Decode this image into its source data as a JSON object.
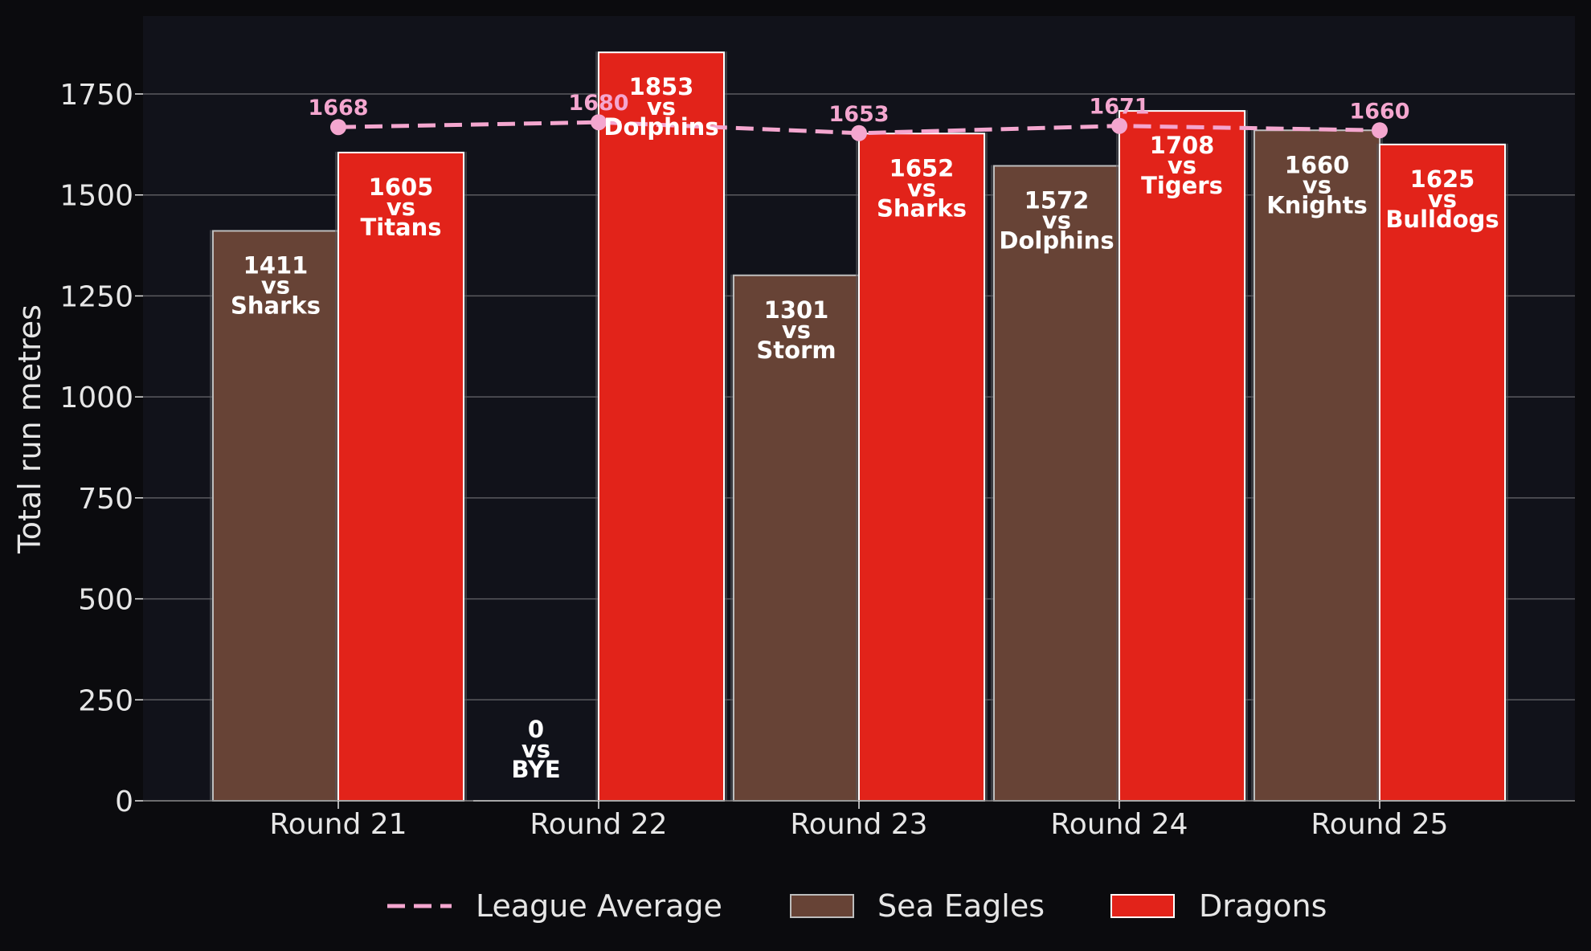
{
  "chart_data": {
    "type": "bar",
    "categories": [
      "Round 21",
      "Round 22",
      "Round 23",
      "Round 24",
      "Round 25"
    ],
    "ylabel": "Total run metres",
    "xlabel": "",
    "ylim": [
      0,
      1950
    ],
    "yticks": [
      0,
      250,
      500,
      750,
      1000,
      1250,
      1500,
      1750
    ],
    "grid": "horizontal",
    "legend_position": "bottom",
    "series": [
      {
        "name": "Sea Eagles",
        "type": "bar",
        "color": "#674336",
        "values": [
          1411,
          0,
          1301,
          1572,
          1660
        ],
        "opponents": [
          "Sharks",
          "BYE",
          "Storm",
          "Dolphins",
          "Knights"
        ]
      },
      {
        "name": "Dragons",
        "type": "bar",
        "color": "#e2231a",
        "values": [
          1605,
          1853,
          1652,
          1708,
          1625
        ],
        "opponents": [
          "Titans",
          "Dolphins",
          "Sharks",
          "Tigers",
          "Bulldogs"
        ]
      },
      {
        "name": "League Average",
        "type": "line",
        "style": "dashed",
        "color": "#f4a6cf",
        "values": [
          1668,
          1680,
          1653,
          1671,
          1660
        ]
      }
    ],
    "vs_word": "vs"
  },
  "colors": {
    "background": "#0b0b0e",
    "plot_background": "#11121a",
    "grid": "#5a5a5f",
    "text": "#e6e6e6"
  }
}
